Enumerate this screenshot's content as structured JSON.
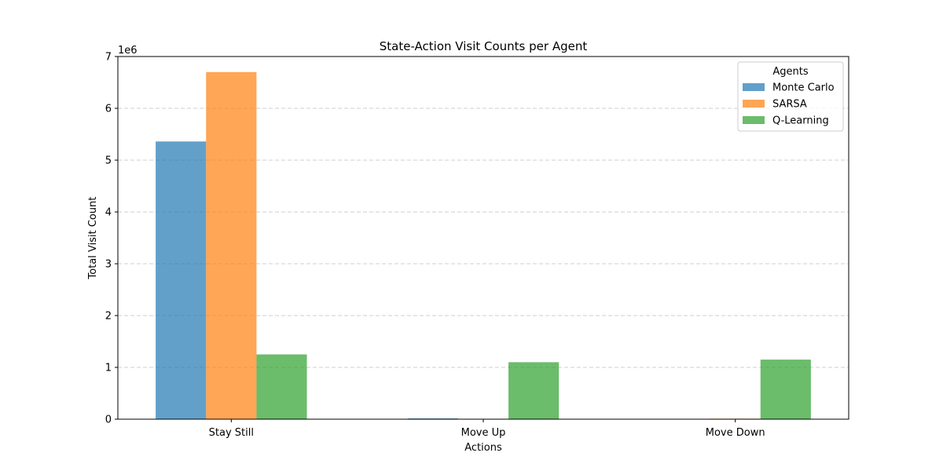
{
  "chart_data": {
    "type": "bar",
    "title": "State-Action Visit Counts per Agent",
    "xlabel": "Actions",
    "ylabel": "Total Visit Count",
    "y_scale_label": "1e6",
    "categories": [
      "Stay Still",
      "Move Up",
      "Move Down"
    ],
    "ylim": [
      0,
      7000000
    ],
    "yticks": [
      0,
      1000000,
      2000000,
      3000000,
      4000000,
      5000000,
      6000000,
      7000000
    ],
    "ytick_labels": [
      "0",
      "1",
      "2",
      "3",
      "4",
      "5",
      "6",
      "7"
    ],
    "grid": "y-dashed",
    "legend": {
      "title": "Agents",
      "placement": "top-right"
    },
    "series": [
      {
        "name": "Monte Carlo",
        "color": "#1f77b4",
        "values": [
          5360000,
          15000,
          3000
        ]
      },
      {
        "name": "SARSA",
        "color": "#ff7f0e",
        "values": [
          6700000,
          8000,
          10000
        ]
      },
      {
        "name": "Q-Learning",
        "color": "#2ca02c",
        "values": [
          1250000,
          1100000,
          1150000
        ]
      }
    ]
  }
}
